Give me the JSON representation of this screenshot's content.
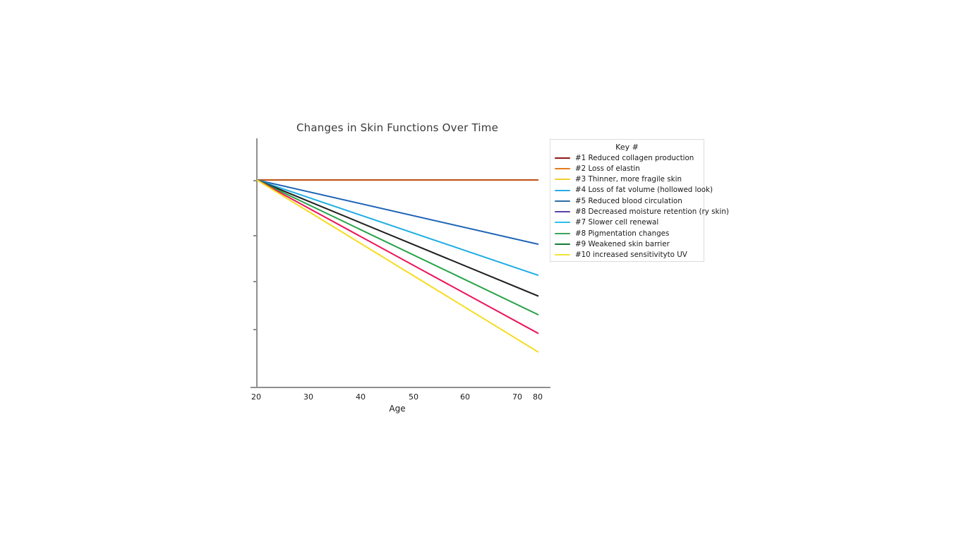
{
  "chart_data": {
    "type": "line",
    "title": "Changes in Skin Functions Over Time",
    "xlabel": "Age",
    "ylabel": "",
    "x_ticks": [
      "20",
      "30",
      "40",
      "50",
      "60",
      "70",
      "80"
    ],
    "x_range": [
      20,
      80
    ],
    "y_axis_labeled": false,
    "y_note": "y-axis has unlabeled tick marks; series values normalized so all lines start at 100 at age 20, 0 = x-axis baseline",
    "grid": "off",
    "legend_position": "right-outside",
    "lines": [
      {
        "id": "flat-orange",
        "color": "#c05a1c",
        "start": 100,
        "end": 100
      },
      {
        "id": "blue",
        "color": "#1b63b5",
        "start": 100,
        "end": 69
      },
      {
        "id": "cyan",
        "color": "#1faee4",
        "start": 100,
        "end": 54
      },
      {
        "id": "black",
        "color": "#1f1f1f",
        "start": 100,
        "end": 44
      },
      {
        "id": "green",
        "color": "#27a349",
        "start": 100,
        "end": 35
      },
      {
        "id": "crimson",
        "color": "#ec1559",
        "start": 100,
        "end": 26
      },
      {
        "id": "yellow",
        "color": "#f6dc1f",
        "start": 100,
        "end": 17
      }
    ]
  },
  "legend": {
    "title": "Key #",
    "items": [
      {
        "label": "#1 Reduced collagen production",
        "color": "#8b1a1a"
      },
      {
        "label": "#2 Loss of elastin",
        "color": "#e87a1e"
      },
      {
        "label": "#3 Thinner, more fragile skin",
        "color": "#efd02c"
      },
      {
        "label": "#4 Loss of fat volume (hollowed look)",
        "color": "#29abe2"
      },
      {
        "label": "#5 Reduced blood circulation",
        "color": "#2e6da4"
      },
      {
        "label": "#8 Decreased moisture retention (ry skin)",
        "color": "#5b3fa8"
      },
      {
        "label": "#7 Slower cell renewal",
        "color": "#2bc0e8"
      },
      {
        "label": "#8 Pigmentation changes",
        "color": "#3ca55c"
      },
      {
        "label": "#9 Weakened skin barrier",
        "color": "#157a33"
      },
      {
        "label": "#10 increased sensitivityto UV",
        "color": "#f2e23a"
      }
    ]
  }
}
